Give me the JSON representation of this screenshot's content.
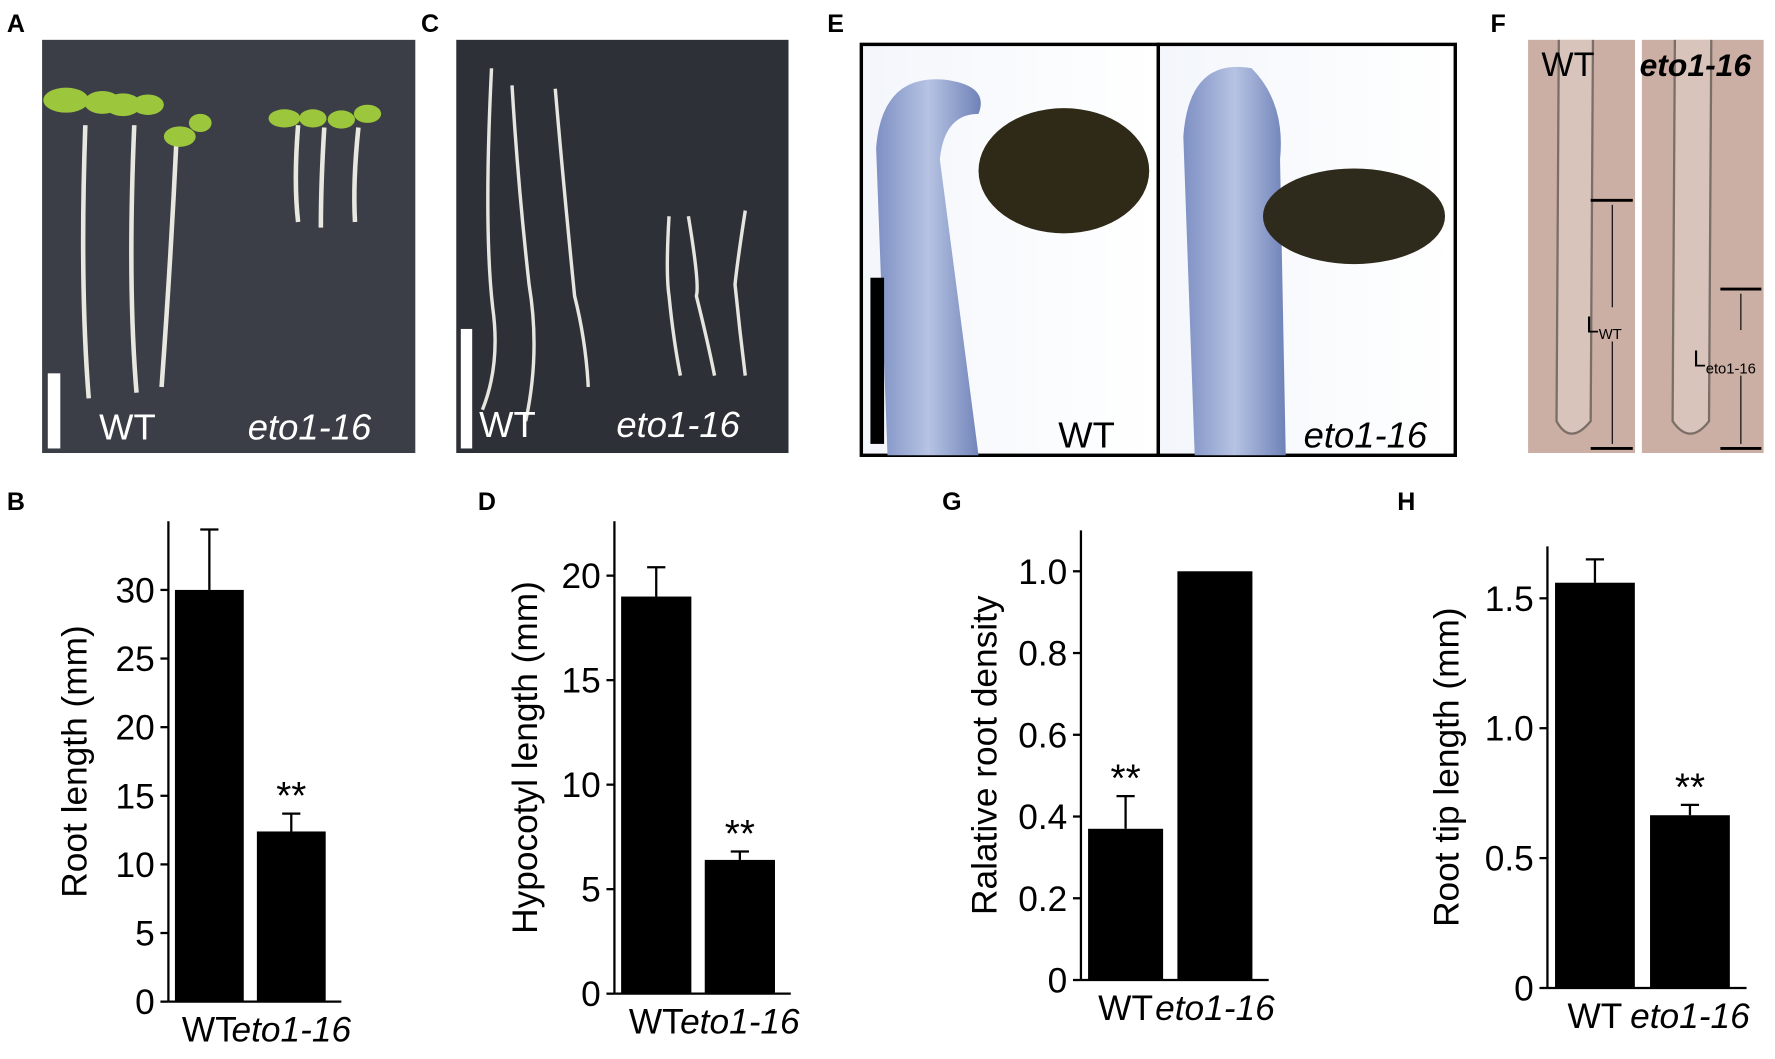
{
  "chart_data": [
    {
      "type": "bar",
      "label": "B",
      "ylabel": "Root length (mm)",
      "categories": [
        "WT",
        "eto1-16"
      ],
      "series": [
        {
          "color": "#000000",
          "values": [
            30,
            12.4
          ],
          "errors": [
            4.4,
            1.3
          ],
          "significance": [
            null,
            "**"
          ]
        }
      ],
      "ylim": [
        0,
        35
      ],
      "yticks": [
        0,
        5,
        10,
        15,
        20,
        25,
        30
      ]
    },
    {
      "type": "bar",
      "label": "D",
      "ylabel": "Hypocotyl length (mm)",
      "categories": [
        "WT",
        "eto1-16"
      ],
      "series": [
        {
          "color": "#000000",
          "values": [
            19.0,
            6.4
          ],
          "errors": [
            1.4,
            0.4
          ],
          "significance": [
            null,
            "**"
          ]
        }
      ],
      "ylim": [
        0,
        22.6
      ],
      "yticks": [
        0,
        5,
        10,
        15,
        20
      ]
    },
    {
      "type": "bar",
      "label": "G",
      "ylabel": "Ralative root  density",
      "categories": [
        "WT",
        "eto1-16"
      ],
      "series": [
        {
          "color": "#000000",
          "values": [
            0.37,
            1.0
          ],
          "errors": [
            0.08,
            null
          ],
          "significance": [
            "**",
            null
          ]
        }
      ],
      "ylim": [
        0,
        1.1
      ],
      "yticks": [
        0,
        0.2,
        0.4,
        0.6,
        0.8,
        {
          "value": 1.0,
          "label": "1.0"
        }
      ]
    },
    {
      "type": "bar",
      "label": "H",
      "ylabel": "Root tip length (mm)",
      "categories": [
        "WT",
        "eto1-16"
      ],
      "series": [
        {
          "color": "#000000",
          "values": [
            1.56,
            0.665
          ],
          "errors": [
            0.09,
            0.04
          ],
          "significance": [
            null,
            "**"
          ]
        }
      ],
      "ylim": [
        0,
        1.7
      ],
      "yticks": [
        0,
        0.5,
        {
          "value": 1.0,
          "label": "1.0"
        },
        1.5
      ]
    }
  ],
  "panels": [
    {
      "label": "A",
      "texts": [
        "WT",
        "eto1-16"
      ]
    },
    {
      "label": "C",
      "texts": [
        "WT",
        "eto1-16"
      ]
    },
    {
      "label": "E",
      "texts": [
        "WT",
        "eto1-16"
      ]
    },
    {
      "label": "F",
      "texts": [
        "WT",
        "eto1-16"
      ],
      "measures": [
        {
          "main": "L",
          "sub": "WT"
        },
        {
          "main": "L",
          "sub": "eto1-16"
        }
      ]
    }
  ]
}
